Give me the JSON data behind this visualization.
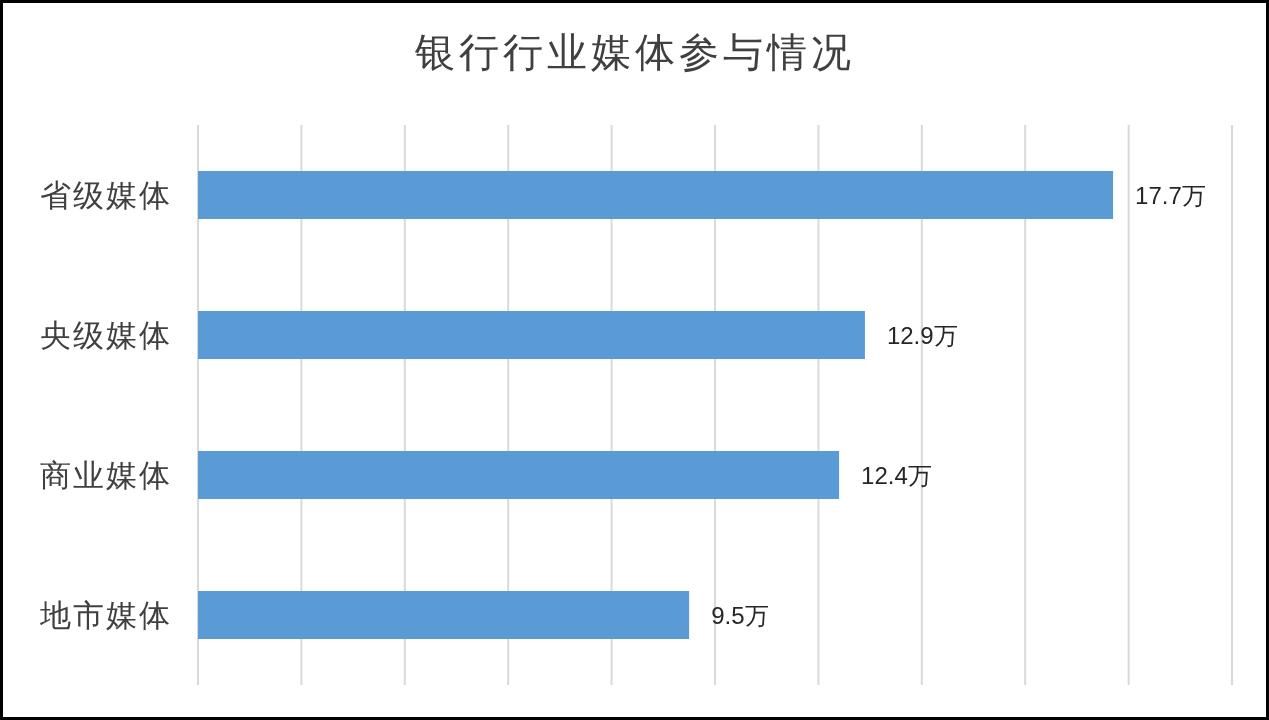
{
  "chart_data": {
    "type": "bar",
    "orientation": "horizontal",
    "title": "银行行业媒体参与情况",
    "categories": [
      "省级媒体",
      "央级媒体",
      "商业媒体",
      "地市媒体"
    ],
    "values": [
      17.7,
      12.9,
      12.4,
      9.5
    ],
    "value_labels": [
      "17.7万",
      "12.9万",
      "12.4万",
      "9.5万"
    ],
    "color": "#5b9bd5",
    "xlim": [
      0,
      20
    ],
    "xticks": [
      {
        "value": 0,
        "label": null
      },
      {
        "value": 2,
        "label": null
      },
      {
        "value": 4,
        "label": null
      },
      {
        "value": 6,
        "label": null
      },
      {
        "value": 8,
        "label": null
      },
      {
        "value": 10,
        "label": null
      },
      {
        "value": 12,
        "label": null
      },
      {
        "value": 14,
        "label": null
      },
      {
        "value": 16,
        "label": null
      },
      {
        "value": 18,
        "label": null
      },
      {
        "value": 20,
        "label": null
      }
    ],
    "grid": "x",
    "tick_labels": "y"
  }
}
